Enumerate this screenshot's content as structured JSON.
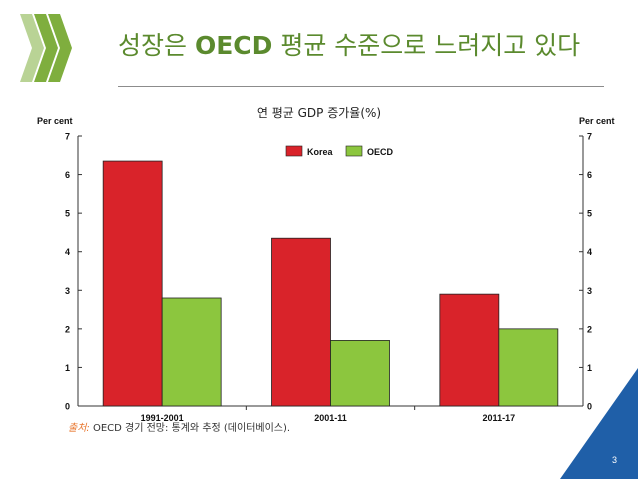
{
  "slide": {
    "title_part1": "성장은 ",
    "title_bold": "OECD",
    "title_part2": " 평균 수준으로 느려지고 있다",
    "source_label": "출처:",
    "source_text": " OECD 경기 전망: 통계와 추정 (데이터베이스).",
    "page_number": "3"
  },
  "colors": {
    "korea": "#d9232a",
    "oecd": "#8cc63e",
    "title": "#5b8a2e",
    "logo": "#7fae3e",
    "corner": "#1f5fa8"
  },
  "chart_data": {
    "type": "bar",
    "title": "연 평균 GDP 증가율(%)",
    "ylabel_left": "Per cent",
    "ylabel_right": "Per cent",
    "categories": [
      "1991-2001",
      "2001-11",
      "2011-17"
    ],
    "series": [
      {
        "name": "Korea",
        "values": [
          6.35,
          4.35,
          2.9
        ]
      },
      {
        "name": "OECD",
        "values": [
          2.8,
          1.7,
          2.0
        ]
      }
    ],
    "ylim": [
      0,
      7
    ],
    "yticks": [
      "0",
      "1",
      "2",
      "3",
      "4",
      "5",
      "6",
      "7"
    ],
    "legend": "top-center",
    "grid": false
  }
}
